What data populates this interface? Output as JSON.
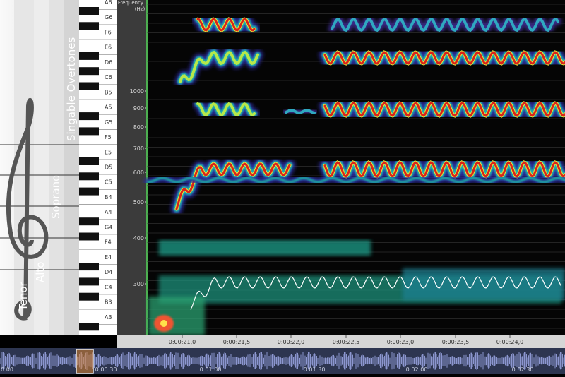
{
  "left_panel": {
    "ranges": [
      "Tenor",
      "Alto",
      "Soprano",
      "Singable Overtones"
    ],
    "piano_notes": [
      "A6",
      "G6",
      "F6",
      "E6",
      "D6",
      "C6",
      "B5",
      "A5",
      "G5",
      "F5",
      "E5",
      "D5",
      "C5",
      "B4",
      "A4",
      "G4",
      "F4",
      "E4",
      "D4",
      "C4",
      "B3",
      "A3"
    ]
  },
  "frequency_axis": {
    "title": [
      "Frequency",
      "(Hz)"
    ],
    "labels": [
      "1000",
      "900",
      "800",
      "700",
      "600",
      "500",
      "400",
      "300"
    ]
  },
  "time_axis": {
    "labels": [
      "0:00:21,0",
      "0:00:21,5",
      "0:00:22,0",
      "0:00:22,5",
      "0:00:23,0",
      "0:00:23,5",
      "0:00:24,0"
    ]
  },
  "overview": {
    "labels": [
      "0:00",
      "0:00:30",
      "0:01:00",
      "0:01:30",
      "0:02:00",
      "0:02:30"
    ]
  }
}
